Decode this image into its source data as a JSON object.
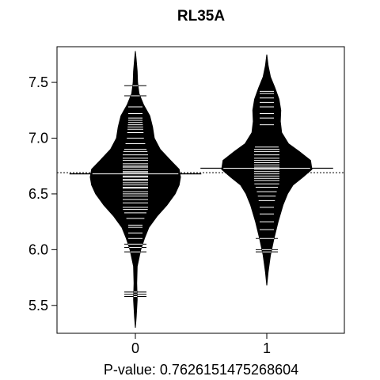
{
  "chart_data": {
    "type": "beanplot",
    "title": "RL35A",
    "xlabel": "P-value: 0.7626151475268604",
    "ylabel": "",
    "categories": [
      "0",
      "1"
    ],
    "ylim": [
      5.25,
      7.82
    ],
    "yticks": [
      5.5,
      6.0,
      6.5,
      7.0,
      7.5
    ],
    "ytick_labels": [
      "5.5",
      "6.0",
      "6.5",
      "7.0",
      "7.5"
    ],
    "overall_mean": 6.69,
    "series": [
      {
        "group": "0",
        "mean": 6.68,
        "min": 5.3,
        "max": 7.78,
        "density_profile": [
          [
            5.3,
            0.0
          ],
          [
            5.4,
            0.02
          ],
          [
            5.55,
            0.04
          ],
          [
            5.7,
            0.03
          ],
          [
            5.85,
            0.04
          ],
          [
            6.0,
            0.12
          ],
          [
            6.1,
            0.2
          ],
          [
            6.2,
            0.3
          ],
          [
            6.3,
            0.48
          ],
          [
            6.4,
            0.7
          ],
          [
            6.5,
            0.88
          ],
          [
            6.58,
            0.97
          ],
          [
            6.65,
            1.0
          ],
          [
            6.72,
            0.97
          ],
          [
            6.8,
            0.78
          ],
          [
            6.9,
            0.55
          ],
          [
            7.0,
            0.42
          ],
          [
            7.1,
            0.38
          ],
          [
            7.2,
            0.32
          ],
          [
            7.3,
            0.18
          ],
          [
            7.4,
            0.08
          ],
          [
            7.5,
            0.05
          ],
          [
            7.6,
            0.04
          ],
          [
            7.7,
            0.02
          ],
          [
            7.78,
            0.0
          ]
        ],
        "observations": [
          5.58,
          5.6,
          5.62,
          5.98,
          6.02,
          6.05,
          6.1,
          6.15,
          6.2,
          6.22,
          6.28,
          6.33,
          6.36,
          6.38,
          6.42,
          6.45,
          6.48,
          6.5,
          6.52,
          6.55,
          6.56,
          6.58,
          6.6,
          6.62,
          6.63,
          6.65,
          6.66,
          6.68,
          6.69,
          6.7,
          6.72,
          6.74,
          6.75,
          6.77,
          6.8,
          6.82,
          6.85,
          6.88,
          6.9,
          6.95,
          7.0,
          7.05,
          7.08,
          7.1,
          7.12,
          7.14,
          7.16,
          7.18,
          7.22,
          7.28,
          7.38,
          7.47
        ]
      },
      {
        "group": "1",
        "mean": 6.73,
        "min": 5.68,
        "max": 7.75,
        "density_profile": [
          [
            5.68,
            0.0
          ],
          [
            5.8,
            0.03
          ],
          [
            5.95,
            0.08
          ],
          [
            6.1,
            0.16
          ],
          [
            6.25,
            0.25
          ],
          [
            6.4,
            0.36
          ],
          [
            6.5,
            0.46
          ],
          [
            6.58,
            0.58
          ],
          [
            6.65,
            0.8
          ],
          [
            6.72,
            1.0
          ],
          [
            6.8,
            0.97
          ],
          [
            6.88,
            0.72
          ],
          [
            6.95,
            0.48
          ],
          [
            7.05,
            0.33
          ],
          [
            7.15,
            0.3
          ],
          [
            7.25,
            0.31
          ],
          [
            7.35,
            0.27
          ],
          [
            7.45,
            0.18
          ],
          [
            7.55,
            0.08
          ],
          [
            7.65,
            0.03
          ],
          [
            7.75,
            0.0
          ]
        ],
        "observations": [
          5.98,
          6.0,
          6.1,
          6.18,
          6.25,
          6.32,
          6.38,
          6.44,
          6.48,
          6.52,
          6.56,
          6.59,
          6.62,
          6.64,
          6.66,
          6.68,
          6.7,
          6.72,
          6.74,
          6.76,
          6.78,
          6.8,
          6.82,
          6.85,
          6.88,
          6.9,
          6.92,
          7.12,
          7.18,
          7.22,
          7.28,
          7.32,
          7.36,
          7.4,
          7.42
        ]
      }
    ],
    "grid": false,
    "legend": "none"
  }
}
